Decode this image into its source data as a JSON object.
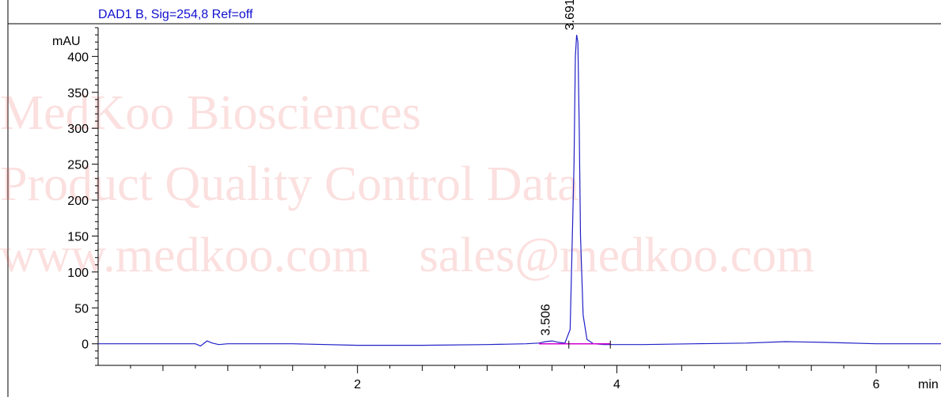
{
  "chart_data": {
    "type": "line",
    "title": "DAD1 B, Sig=254,8 Ref=off",
    "ylabel": "mAU",
    "xlabel": "min",
    "xlim": [
      0,
      6.5
    ],
    "ylim": [
      -30,
      440
    ],
    "x_ticks": [
      2,
      4,
      6
    ],
    "x_tick_labels": [
      "2",
      "4",
      "6"
    ],
    "y_ticks": [
      0,
      50,
      100,
      150,
      200,
      250,
      300,
      350,
      400
    ],
    "y_tick_labels": [
      "0",
      "50",
      "100",
      "150",
      "200",
      "250",
      "300",
      "350",
      "400"
    ],
    "series": [
      {
        "color": "#2020c8",
        "x": [
          0,
          0.4,
          0.75,
          0.79,
          0.84,
          0.88,
          0.93,
          1.0,
          1.5,
          2.0,
          2.5,
          3.0,
          3.3,
          3.4,
          3.45,
          3.5,
          3.55,
          3.6,
          3.64,
          3.67,
          3.68,
          3.69,
          3.7,
          3.71,
          3.72,
          3.74,
          3.77,
          3.82,
          3.9,
          4.2,
          4.6,
          5.0,
          5.3,
          5.6,
          6.0,
          6.5
        ],
        "y": [
          0,
          0,
          0,
          -3,
          4,
          1,
          -1,
          0,
          0,
          -2,
          -2,
          -1,
          0,
          1,
          3,
          4,
          2,
          1,
          20,
          250,
          400,
          430,
          420,
          300,
          150,
          40,
          6,
          0,
          -1,
          -1,
          0,
          1,
          3,
          2,
          0,
          0
        ]
      },
      {
        "color": "#d000d0",
        "x": [
          3.4,
          3.95
        ],
        "y": [
          0,
          0
        ]
      }
    ],
    "peaks": [
      {
        "rt": 3.506,
        "label": "3.506"
      },
      {
        "rt": 3.691,
        "label": "3.691"
      }
    ],
    "watermark": [
      "MedKoo Biosciences",
      "Product Quality Control Data",
      "www.medkoo.com    sales@medkoo.com"
    ]
  }
}
